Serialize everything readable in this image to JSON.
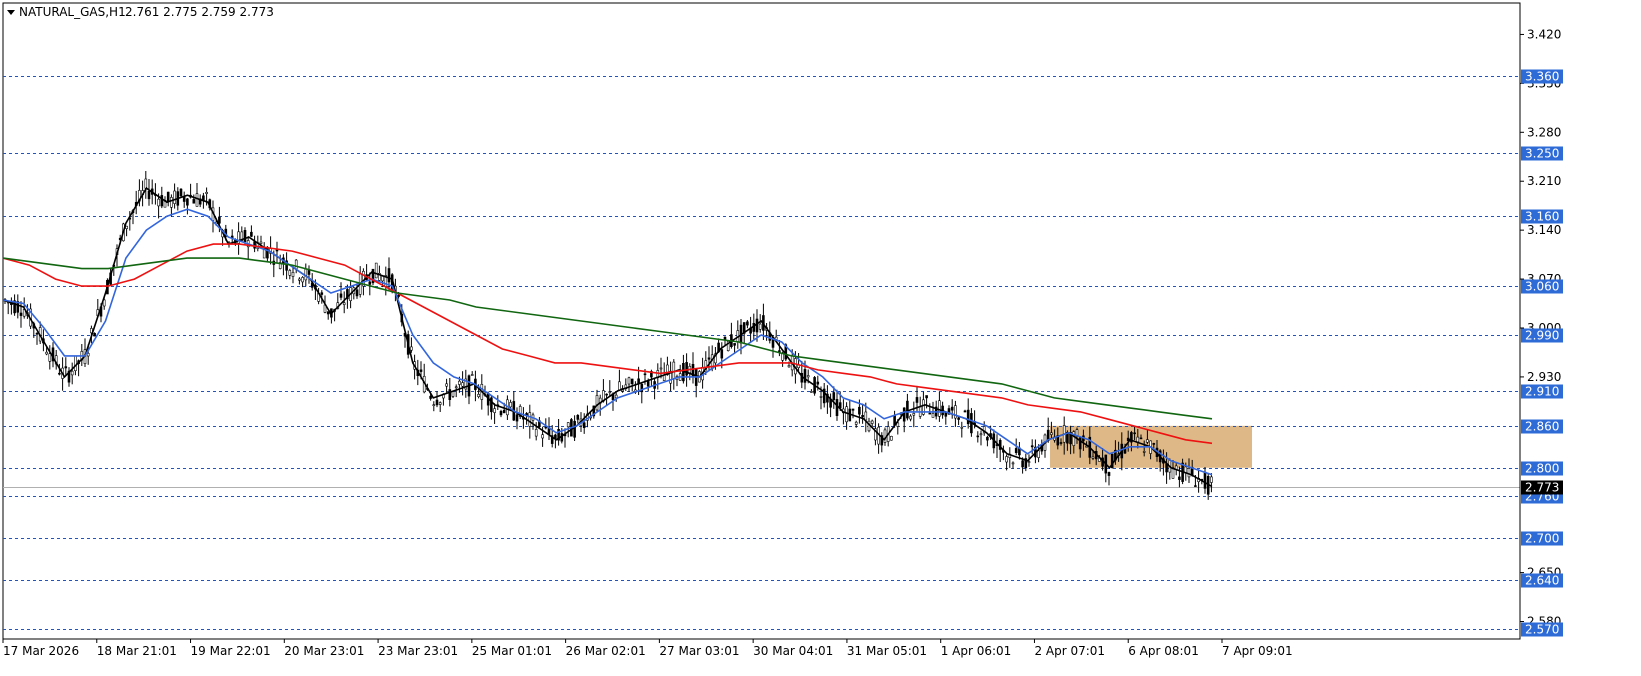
{
  "header": {
    "symbol": "NATURAL_GAS,H1",
    "ohlc": "2.761 2.775 2.759 2.773",
    "menu_icon": "triangle-down-icon"
  },
  "chart_data": {
    "type": "candlestick",
    "symbol": "NATURAL_GAS",
    "timeframe": "H1",
    "ylim": [
      2.555,
      3.465
    ],
    "y_tick_labels": [
      "3.420",
      "3.350",
      "3.280",
      "3.210",
      "3.140",
      "3.070",
      "3.000",
      "2.930",
      "2.650",
      "2.580"
    ],
    "x_tick_labels": [
      "17 Mar 2026",
      "18 Mar 21:01",
      "19 Mar 22:01",
      "20 Mar 23:01",
      "23 Mar 23:01",
      "25 Mar 01:01",
      "26 Mar 02:01",
      "27 Mar 03:01",
      "30 Mar 04:01",
      "31 Mar 05:01",
      "1 Apr 06:01",
      "2 Apr 07:01",
      "6 Apr 08:01",
      "7 Apr 09:01"
    ],
    "levels": [
      "3.360",
      "3.250",
      "3.160",
      "3.060",
      "2.990",
      "2.910",
      "2.860",
      "2.800",
      "2.760",
      "2.700",
      "2.640",
      "2.570"
    ],
    "current_price": "2.773",
    "zone": {
      "x_start": "2 Apr 07:01",
      "x_end": "after 7 Apr 09:01",
      "y_low": 2.8,
      "y_high": 2.86,
      "color": "#deb887"
    },
    "series": [
      {
        "style": "line",
        "color": "#000000",
        "values": [
          3.04,
          3.03,
          2.98,
          2.93,
          2.96,
          3.05,
          3.15,
          3.2,
          3.18,
          3.19,
          3.18,
          3.12,
          3.13,
          3.11,
          3.09,
          3.07,
          3.02,
          3.05,
          3.08,
          3.07,
          2.95,
          2.9,
          2.91,
          2.92,
          2.89,
          2.88,
          2.86,
          2.84,
          2.86,
          2.89,
          2.91,
          2.92,
          2.93,
          2.94,
          2.93,
          2.97,
          2.99,
          3.01,
          2.97,
          2.93,
          2.91,
          2.88,
          2.87,
          2.84,
          2.88,
          2.89,
          2.88,
          2.87,
          2.85,
          2.82,
          2.81,
          2.84,
          2.85,
          2.83,
          2.8,
          2.84,
          2.83,
          2.8,
          2.79,
          2.773
        ]
      },
      {
        "style": "line",
        "color": "#3366dd",
        "values": [
          3.04,
          3.035,
          3.0,
          2.96,
          2.96,
          3.01,
          3.1,
          3.14,
          3.16,
          3.17,
          3.16,
          3.13,
          3.12,
          3.11,
          3.09,
          3.07,
          3.05,
          3.06,
          3.07,
          3.06,
          2.99,
          2.95,
          2.93,
          2.92,
          2.9,
          2.88,
          2.87,
          2.85,
          2.86,
          2.88,
          2.9,
          2.91,
          2.92,
          2.93,
          2.93,
          2.95,
          2.97,
          2.99,
          2.98,
          2.95,
          2.93,
          2.9,
          2.89,
          2.87,
          2.88,
          2.88,
          2.88,
          2.87,
          2.86,
          2.84,
          2.82,
          2.84,
          2.85,
          2.84,
          2.82,
          2.83,
          2.83,
          2.81,
          2.8,
          2.79
        ]
      },
      {
        "style": "line",
        "color": "#ee1111",
        "values": [
          3.1,
          3.09,
          3.07,
          3.06,
          3.06,
          3.07,
          3.09,
          3.11,
          3.12,
          3.12,
          3.115,
          3.11,
          3.1,
          3.09,
          3.07,
          3.05,
          3.03,
          3.01,
          2.99,
          2.97,
          2.96,
          2.95,
          2.95,
          2.945,
          2.94,
          2.935,
          2.94,
          2.945,
          2.95,
          2.95,
          2.95,
          2.94,
          2.935,
          2.93,
          2.92,
          2.915,
          2.91,
          2.905,
          2.9,
          2.89,
          2.885,
          2.88,
          2.87,
          2.86,
          2.85,
          2.84,
          2.835
        ]
      },
      {
        "style": "line",
        "color": "#116611",
        "values": [
          3.1,
          3.095,
          3.09,
          3.085,
          3.085,
          3.09,
          3.095,
          3.1,
          3.1,
          3.1,
          3.095,
          3.09,
          3.08,
          3.07,
          3.06,
          3.05,
          3.045,
          3.04,
          3.03,
          3.025,
          3.02,
          3.015,
          3.01,
          3.005,
          3.0,
          2.995,
          2.99,
          2.985,
          2.98,
          2.97,
          2.96,
          2.955,
          2.95,
          2.945,
          2.94,
          2.935,
          2.93,
          2.925,
          2.92,
          2.91,
          2.9,
          2.895,
          2.89,
          2.885,
          2.88,
          2.875,
          2.87
        ]
      }
    ]
  }
}
